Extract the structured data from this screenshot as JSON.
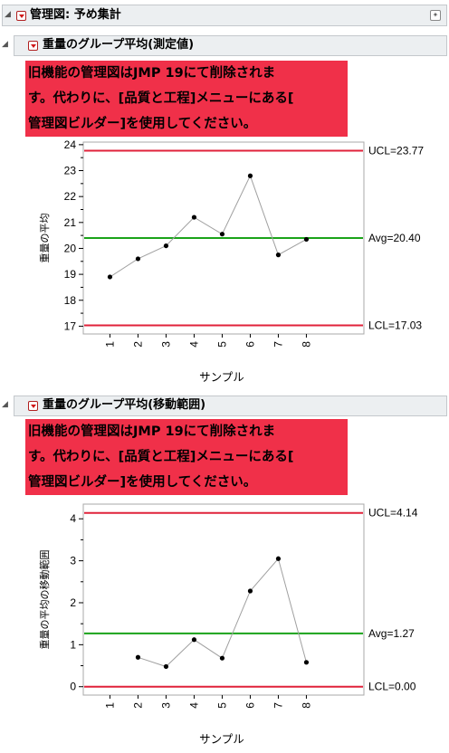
{
  "report": {
    "title": "管理図: 予め集計"
  },
  "warning": {
    "lines": [
      "旧機能の管理図はJMP 19にて削除されま",
      "す。代わりに、[品質と工程]メニューにある[",
      "管理図ビルダー]を使用してください。"
    ]
  },
  "colors": {
    "limit": "#e0223a",
    "avg": "#1aa319",
    "line": "#a0a0a0",
    "point": "#000000",
    "warning_bg": "#f03049"
  },
  "charts": [
    {
      "section_title": "重量のグループ平均(測定値)",
      "xlabel": "サンプル",
      "ylabel": "重量の平均",
      "ucl_label": "UCL=23.77",
      "avg_label": "Avg=20.40",
      "lcl_label": "LCL=17.03"
    },
    {
      "section_title": "重量のグループ平均(移動範囲)",
      "xlabel": "サンプル",
      "ylabel": "重量の平均の移動範囲",
      "ucl_label": "UCL=4.14",
      "avg_label": "Avg=1.27",
      "lcl_label": "LCL=0.00"
    }
  ],
  "chart_data": [
    {
      "type": "line",
      "x": [
        1,
        2,
        3,
        4,
        5,
        6,
        7,
        8
      ],
      "categories": [
        "1",
        "2",
        "3",
        "4",
        "5",
        "6",
        "7",
        "8"
      ],
      "values": [
        18.9,
        19.6,
        20.1,
        21.2,
        20.55,
        22.8,
        19.75,
        20.35
      ],
      "ucl": 23.77,
      "avg": 20.4,
      "lcl": 17.03,
      "ylim": [
        16.7,
        24.1
      ],
      "yticks": [
        17,
        18,
        19,
        20,
        21,
        22,
        23,
        24
      ],
      "xlabel": "サンプル",
      "ylabel": "重量の平均"
    },
    {
      "type": "line",
      "x": [
        1,
        2,
        3,
        4,
        5,
        6,
        7,
        8
      ],
      "categories": [
        "1",
        "2",
        "3",
        "4",
        "5",
        "6",
        "7",
        "8"
      ],
      "values": [
        null,
        0.7,
        0.48,
        1.12,
        0.68,
        2.28,
        3.05,
        0.58
      ],
      "ucl": 4.14,
      "avg": 1.27,
      "lcl": 0.0,
      "ylim": [
        -0.2,
        4.35
      ],
      "yticks": [
        0,
        1,
        2,
        3,
        4
      ],
      "xlabel": "サンプル",
      "ylabel": "重量の平均の移動範囲"
    }
  ]
}
